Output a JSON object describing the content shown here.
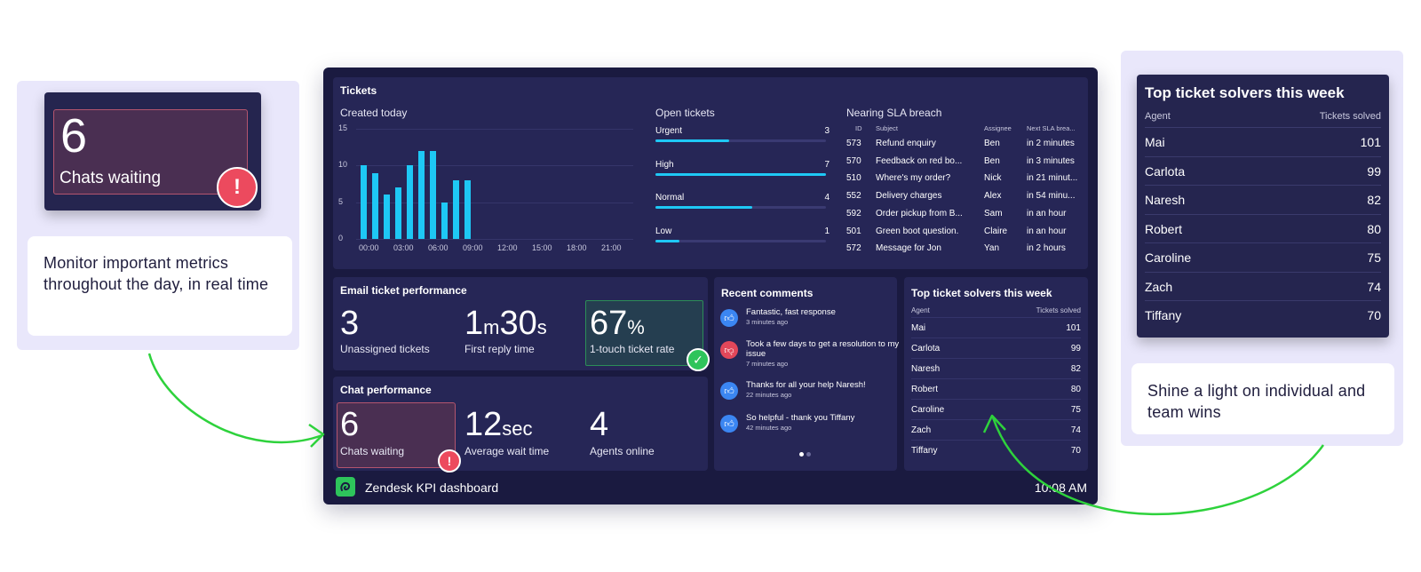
{
  "left_widget": {
    "value": "6",
    "label": "Chats waiting",
    "alert": "!"
  },
  "left_caption": "Monitor important metrics throughout the day, in real time",
  "right_widget": {
    "title": "Top ticket solvers this week",
    "col_agent": "Agent",
    "col_solved": "Tickets solved",
    "rows": [
      {
        "name": "Mai",
        "value": "101"
      },
      {
        "name": "Carlota",
        "value": "99"
      },
      {
        "name": "Naresh",
        "value": "82"
      },
      {
        "name": "Robert",
        "value": "80"
      },
      {
        "name": "Caroline",
        "value": "75"
      },
      {
        "name": "Zach",
        "value": "74"
      },
      {
        "name": "Tiffany",
        "value": "70"
      }
    ]
  },
  "right_caption": "Shine a light on individual and team wins",
  "dashboard": {
    "tickets_title": "Tickets",
    "created_today": {
      "title": "Created today",
      "y_ticks": [
        "15",
        "10",
        "5",
        "0"
      ],
      "x_ticks": [
        "00:00",
        "03:00",
        "06:00",
        "09:00",
        "12:00",
        "15:00",
        "18:00",
        "21:00"
      ]
    },
    "open_tickets": {
      "title": "Open tickets",
      "rows": [
        {
          "label": "Urgent",
          "count": "3",
          "fraction": 0.43
        },
        {
          "label": "High",
          "count": "7",
          "fraction": 1.0
        },
        {
          "label": "Normal",
          "count": "4",
          "fraction": 0.57
        },
        {
          "label": "Low",
          "count": "1",
          "fraction": 0.14
        }
      ]
    },
    "sla": {
      "title": "Nearing SLA breach",
      "headers": [
        "ID",
        "Subject",
        "Assignee",
        "Next SLA brea..."
      ],
      "rows": [
        [
          "573",
          "Refund enquiry",
          "Ben",
          "in 2 minutes"
        ],
        [
          "570",
          "Feedback on red bo...",
          "Ben",
          "in 3 minutes"
        ],
        [
          "510",
          "Where's my order?",
          "Nick",
          "in 21 minut..."
        ],
        [
          "552",
          "Delivery charges",
          "Alex",
          "in 54 minu..."
        ],
        [
          "592",
          "Order pickup from B...",
          "Sam",
          "in an hour"
        ],
        [
          "501",
          "Green boot question.",
          "Claire",
          "in an hour"
        ],
        [
          "572",
          "Message for Jon",
          "Yan",
          "in 2 hours"
        ]
      ]
    },
    "email_perf": {
      "title": "Email ticket performance",
      "unassigned_value": "3",
      "unassigned_label": "Unassigned tickets",
      "reply_min": "1",
      "reply_min_unit": "m",
      "reply_sec": "30",
      "reply_sec_unit": "s",
      "reply_label": "First reply time",
      "touch_value": "67",
      "touch_unit": "%",
      "touch_label": "1-touch ticket rate",
      "check": "✓"
    },
    "chat_perf": {
      "title": "Chat performance",
      "waiting_value": "6",
      "waiting_label": "Chats waiting",
      "alert": "!",
      "wait_value": "12",
      "wait_unit": "sec",
      "wait_label": "Average wait time",
      "agents_value": "4",
      "agents_label": "Agents online"
    },
    "recent_comments": {
      "title": "Recent comments",
      "items": [
        {
          "text": "Fantastic, fast response",
          "time": "3 minutes ago",
          "type": "up"
        },
        {
          "text": "Took a few days to get a resolution to my issue",
          "time": "7 minutes ago",
          "type": "down"
        },
        {
          "text": "Thanks for all your help Naresh!",
          "time": "22 minutes ago",
          "type": "up"
        },
        {
          "text": "So helpful - thank you Tiffany",
          "time": "42 minutes ago",
          "type": "up"
        }
      ]
    },
    "top_solvers": {
      "title": "Top ticket solvers this week",
      "col_agent": "Agent",
      "col_solved": "Tickets solved",
      "rows": [
        {
          "name": "Mai",
          "value": "101"
        },
        {
          "name": "Carlota",
          "value": "99"
        },
        {
          "name": "Naresh",
          "value": "82"
        },
        {
          "name": "Robert",
          "value": "80"
        },
        {
          "name": "Caroline",
          "value": "75"
        },
        {
          "name": "Zach",
          "value": "74"
        },
        {
          "name": "Tiffany",
          "value": "70"
        }
      ]
    },
    "footer_title": "Zendesk KPI dashboard",
    "footer_time": "10:08 AM"
  },
  "chart_data": {
    "type": "bar",
    "title": "Created today",
    "ylim": [
      0,
      15
    ],
    "x": [
      "00:00",
      "01:00",
      "02:00",
      "03:00",
      "04:00",
      "05:00",
      "06:00",
      "07:00",
      "08:00",
      "09:00"
    ],
    "values": [
      10,
      9,
      6,
      7,
      10,
      12,
      12,
      5,
      8,
      8
    ],
    "x_ticks": [
      "00:00",
      "03:00",
      "06:00",
      "09:00",
      "12:00",
      "15:00",
      "18:00",
      "21:00"
    ],
    "y_ticks": [
      0,
      5,
      10,
      15
    ],
    "color": "#1ec8f5"
  },
  "colors": {
    "dashboard_bg": "#1a1a40",
    "panel_bg": "#262656",
    "accent": "#1ec8f5",
    "alert": "#ec4a5e",
    "success": "#2ec45b",
    "arrow": "#2ed23c"
  }
}
